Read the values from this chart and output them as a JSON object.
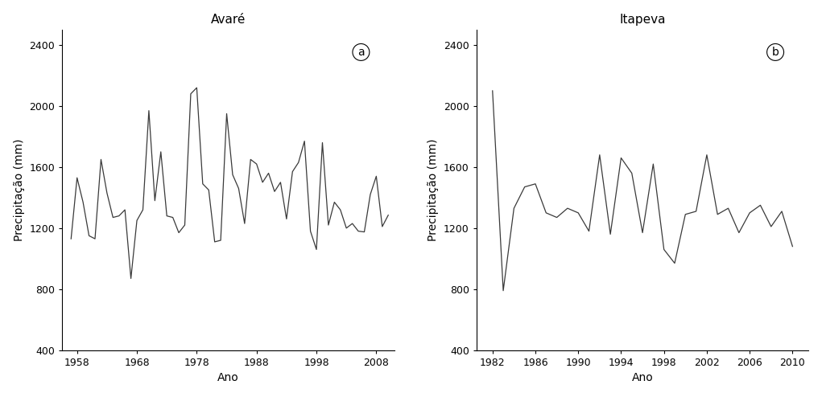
{
  "avare_years": [
    1957,
    1958,
    1959,
    1960,
    1961,
    1962,
    1963,
    1964,
    1965,
    1966,
    1967,
    1968,
    1969,
    1970,
    1971,
    1972,
    1973,
    1974,
    1975,
    1976,
    1977,
    1978,
    1979,
    1980,
    1981,
    1982,
    1983,
    1984,
    1985,
    1986,
    1987,
    1988,
    1989,
    1990,
    1991,
    1992,
    1993,
    1994,
    1995,
    1996,
    1997,
    1998,
    1999,
    2000,
    2001,
    2002,
    2003,
    2004,
    2005,
    2006,
    2007,
    2008,
    2009,
    2010
  ],
  "avare_values": [
    1130,
    1530,
    1370,
    1150,
    1130,
    1650,
    1430,
    1270,
    1280,
    1320,
    870,
    1250,
    1320,
    1970,
    1380,
    1700,
    1280,
    1270,
    1170,
    1220,
    2080,
    2120,
    1490,
    1450,
    1110,
    1120,
    1950,
    1550,
    1460,
    1230,
    1650,
    1620,
    1500,
    1560,
    1440,
    1500,
    1260,
    1570,
    1630,
    1770,
    1180,
    1060,
    1760,
    1220,
    1370,
    1320,
    1200,
    1230,
    1180,
    1175,
    1420,
    1540,
    1210,
    1285
  ],
  "itapeva_years": [
    1982,
    1983,
    1984,
    1985,
    1986,
    1987,
    1988,
    1989,
    1990,
    1991,
    1992,
    1993,
    1994,
    1995,
    1996,
    1997,
    1998,
    1999,
    2000,
    2001,
    2002,
    2003,
    2004,
    2005,
    2006,
    2007,
    2008,
    2009,
    2010
  ],
  "itapeva_values": [
    2100,
    790,
    1330,
    1470,
    1490,
    1300,
    1270,
    1330,
    1300,
    1180,
    1680,
    1160,
    1660,
    1560,
    1170,
    1620,
    1060,
    970,
    1290,
    1310,
    1680,
    1290,
    1330,
    1170,
    1300,
    1350,
    1210,
    1310,
    1080
  ],
  "title_a": "Avaré",
  "title_b": "Itapeva",
  "ylabel": "Precipitação (mm)",
  "xlabel": "Ano",
  "ylim": [
    400,
    2500
  ],
  "yticks": [
    400,
    800,
    1200,
    1600,
    2000,
    2400
  ],
  "avare_xticks": [
    1958,
    1968,
    1978,
    1988,
    1998,
    2008
  ],
  "itapeva_xticks": [
    1982,
    1986,
    1990,
    1994,
    1998,
    2002,
    2006,
    2010
  ],
  "avare_xlim": [
    1955.5,
    2011
  ],
  "itapeva_xlim": [
    1980.5,
    2011.5
  ],
  "line_color": "#3a3a3a",
  "line_width": 0.9,
  "bg_color": "#ffffff",
  "label_a": "a",
  "label_b": "b",
  "tick_fontsize": 9,
  "label_fontsize": 10,
  "title_fontsize": 11
}
